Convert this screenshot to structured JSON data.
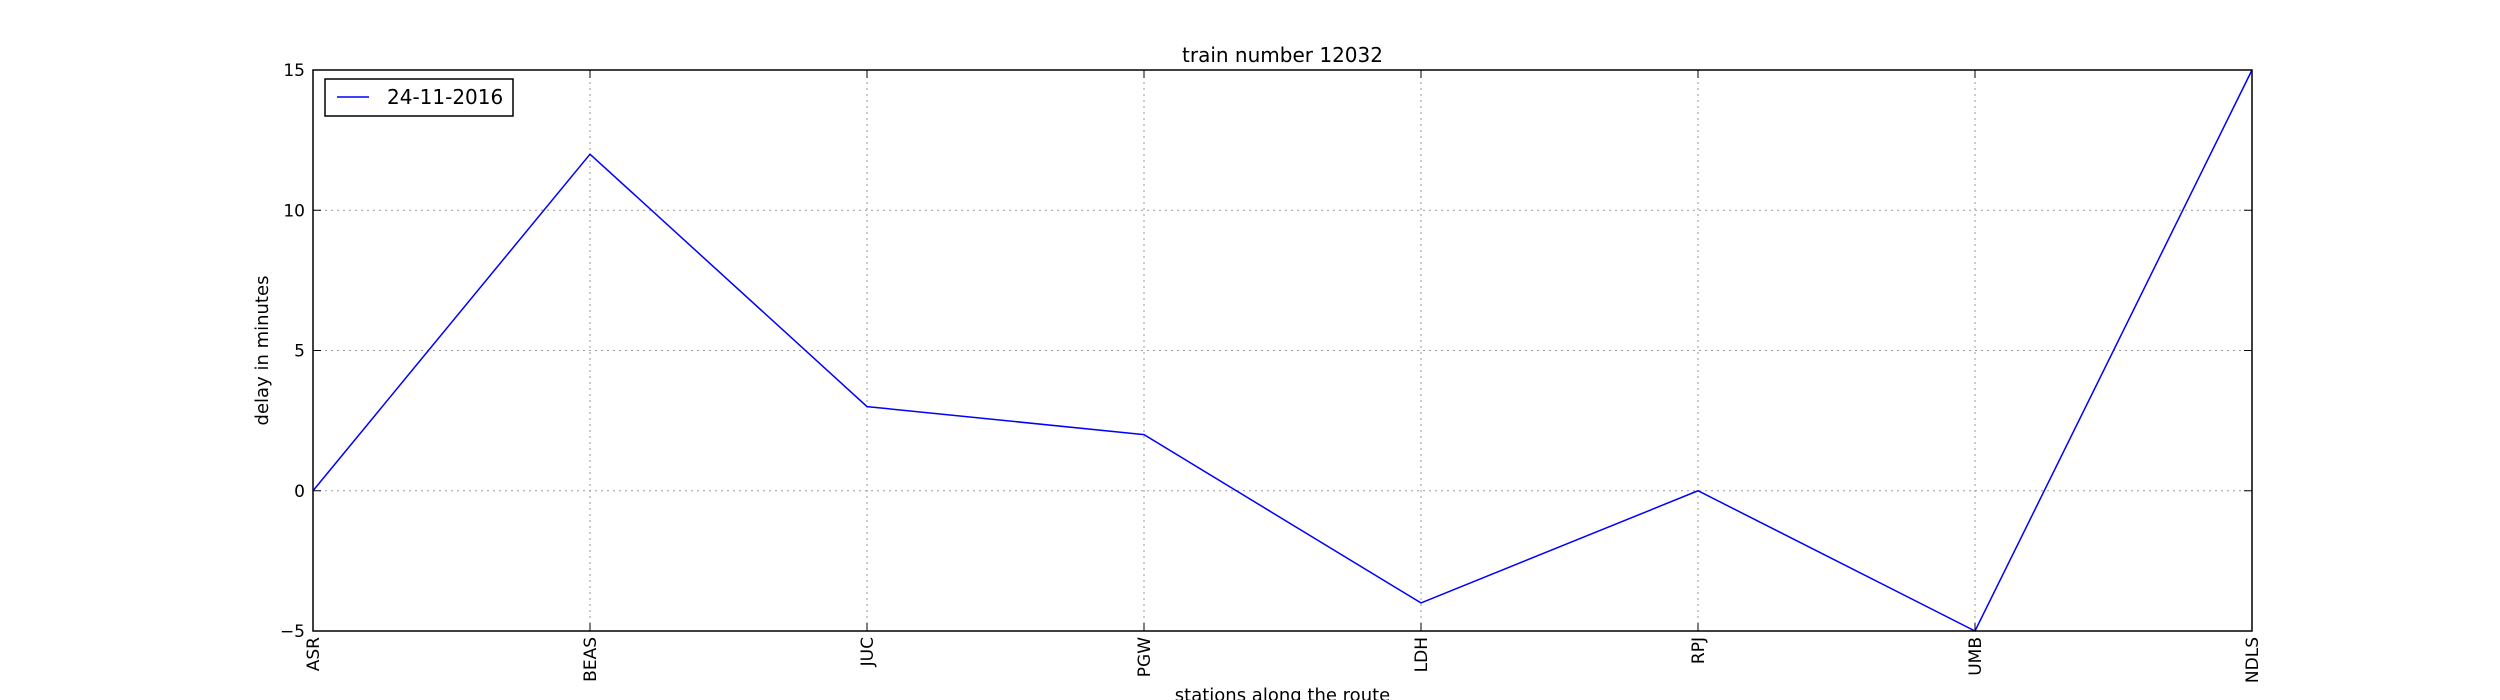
{
  "chart_data": {
    "type": "line",
    "title": "train number 12032",
    "xlabel": "stations along the route",
    "ylabel": "delay in minutes",
    "categories": [
      "ASR",
      "BEAS",
      "JUC",
      "PGW",
      "LDH",
      "RPJ",
      "UMB",
      "NDLS"
    ],
    "series": [
      {
        "name": "24-11-2016",
        "values": [
          0,
          12,
          3,
          2,
          -4,
          0,
          -5,
          15
        ],
        "color": "#0000ff"
      }
    ],
    "ylim": [
      -5,
      15
    ],
    "yticks": [
      -5,
      0,
      5,
      10,
      15
    ],
    "grid": true,
    "legend_position": "upper-left"
  }
}
